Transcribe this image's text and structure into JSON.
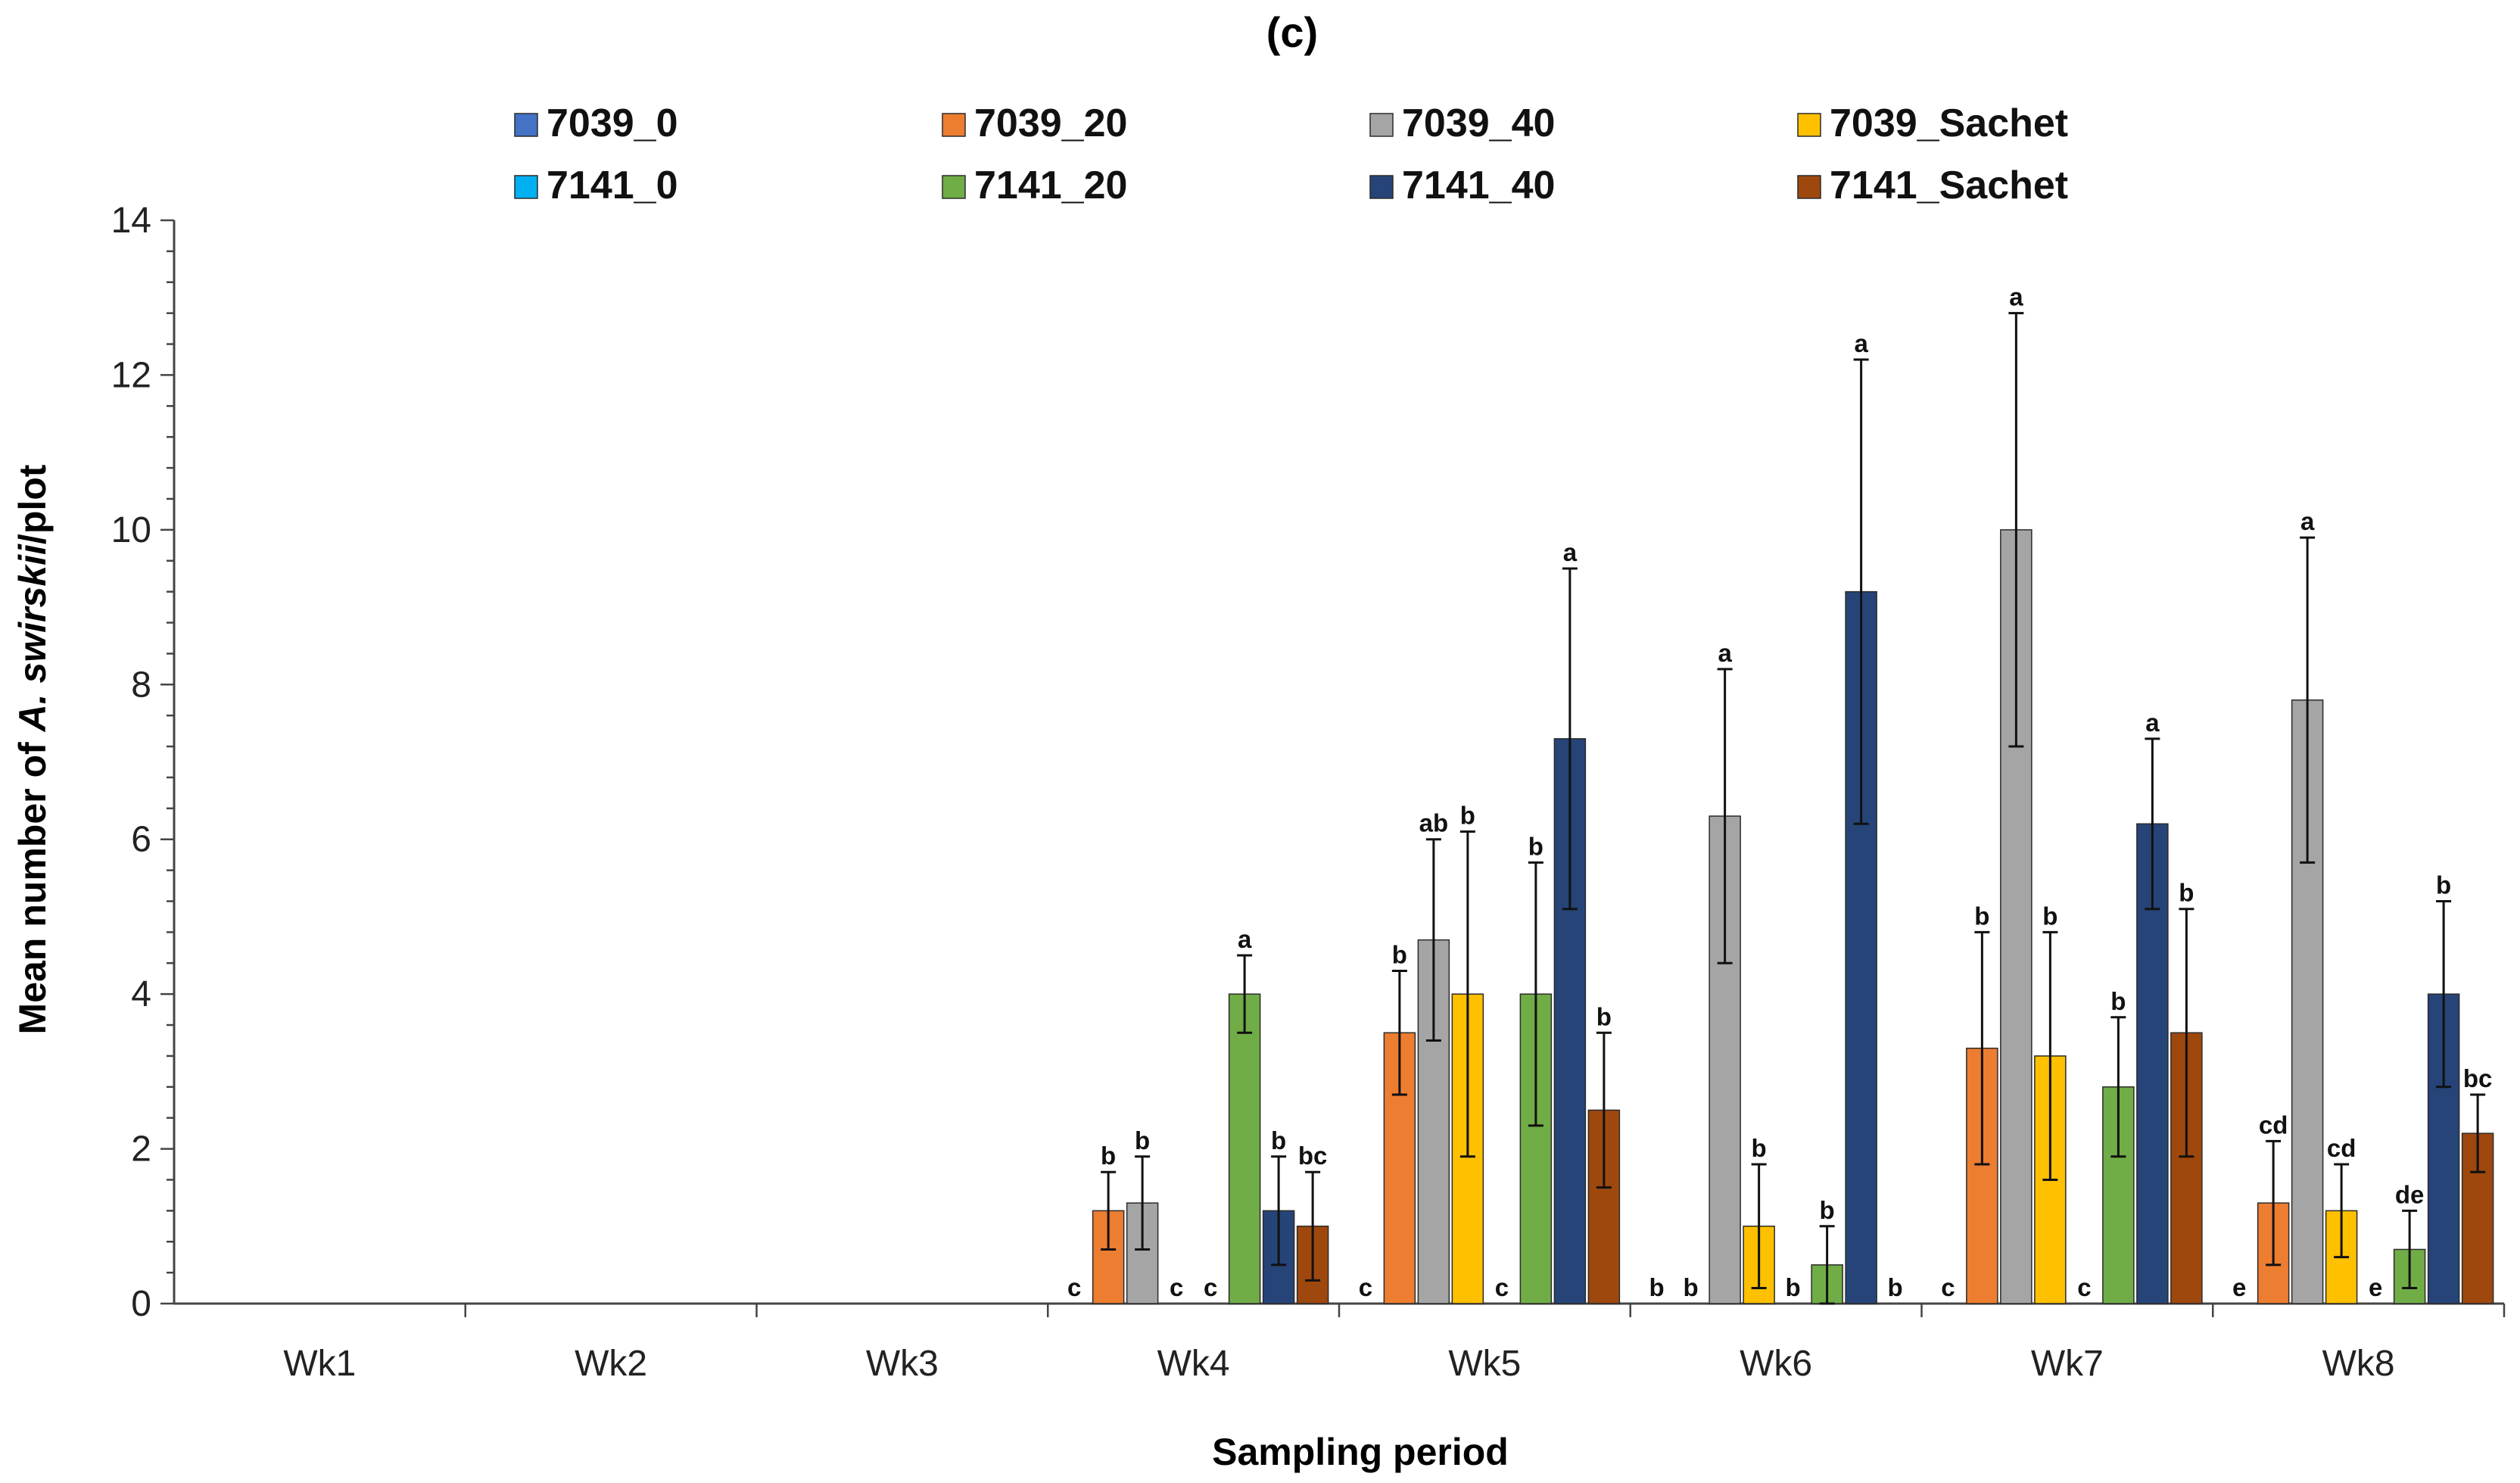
{
  "chart_data": {
    "type": "bar",
    "title": "(c)",
    "xlabel": "Sampling period",
    "ylabel_prefix": "Mean number of ",
    "ylabel_species": "A. swirskii",
    "ylabel_suffix": "/plot",
    "ylim": [
      0,
      14
    ],
    "ytick_step": 2,
    "yticks": [
      "0",
      "2",
      "4",
      "6",
      "8",
      "10",
      "12",
      "14"
    ],
    "categories": [
      "Wk1",
      "Wk2",
      "Wk3",
      "Wk4",
      "Wk5",
      "Wk6",
      "Wk7",
      "Wk8"
    ],
    "series": [
      {
        "name": "7039_0",
        "color": "#4472C4",
        "values": [
          0,
          0,
          0,
          0,
          0,
          0,
          0,
          0
        ],
        "errors": [
          0,
          0,
          0,
          0,
          0,
          0,
          0,
          0
        ],
        "letters": [
          "",
          "",
          "",
          "c",
          "c",
          "b",
          "c",
          "e"
        ]
      },
      {
        "name": "7039_20",
        "color": "#ED7D31",
        "values": [
          0,
          0,
          0,
          1.2,
          3.5,
          0,
          3.3,
          1.3
        ],
        "errors": [
          0,
          0,
          0,
          0.5,
          0.8,
          0,
          1.5,
          0.8
        ],
        "letters": [
          "",
          "",
          "",
          "b",
          "b",
          "b",
          "b",
          "cd"
        ]
      },
      {
        "name": "7039_40",
        "color": "#A5A5A5",
        "values": [
          0,
          0,
          0,
          1.3,
          4.7,
          6.3,
          10.0,
          7.8
        ],
        "errors": [
          0,
          0,
          0,
          0.6,
          1.3,
          1.9,
          2.8,
          2.1
        ],
        "letters": [
          "",
          "",
          "",
          "b",
          "ab",
          "a",
          "a",
          "a"
        ]
      },
      {
        "name": "7039_Sachet",
        "color": "#FFC000",
        "values": [
          0,
          0,
          0,
          0,
          4.0,
          1.0,
          3.2,
          1.2
        ],
        "errors": [
          0,
          0,
          0,
          0,
          2.1,
          0.8,
          1.6,
          0.6
        ],
        "letters": [
          "",
          "",
          "",
          "c",
          "b",
          "b",
          "b",
          "cd"
        ]
      },
      {
        "name": "7141_0",
        "color": "#00B0F0",
        "values": [
          0,
          0,
          0,
          0,
          0,
          0,
          0,
          0
        ],
        "errors": [
          0,
          0,
          0,
          0,
          0,
          0,
          0,
          0
        ],
        "letters": [
          "",
          "",
          "",
          "c",
          "c",
          "b",
          "c",
          "e"
        ]
      },
      {
        "name": "7141_20",
        "color": "#70AD47",
        "values": [
          0,
          0,
          0,
          4.0,
          4.0,
          0.5,
          2.8,
          0.7
        ],
        "errors": [
          0,
          0,
          0,
          0.5,
          1.7,
          0.5,
          0.9,
          0.5
        ],
        "letters": [
          "",
          "",
          "",
          "a",
          "b",
          "b",
          "b",
          "de"
        ]
      },
      {
        "name": "7141_40",
        "color": "#264478",
        "values": [
          0,
          0,
          0,
          1.2,
          7.3,
          9.2,
          6.2,
          4.0
        ],
        "errors": [
          0,
          0,
          0,
          0.7,
          2.2,
          3.0,
          1.1,
          1.2
        ],
        "letters": [
          "",
          "",
          "",
          "b",
          "a",
          "a",
          "a",
          "b"
        ]
      },
      {
        "name": "7141_Sachet",
        "color": "#9E480E",
        "values": [
          0,
          0,
          0,
          1.0,
          2.5,
          0,
          3.5,
          2.2
        ],
        "errors": [
          0,
          0,
          0,
          0.7,
          1.0,
          0,
          1.6,
          0.5
        ],
        "letters": [
          "",
          "",
          "",
          "bc",
          "b",
          "b",
          "b",
          "bc"
        ]
      }
    ],
    "legend_position": "top",
    "grid": false
  }
}
